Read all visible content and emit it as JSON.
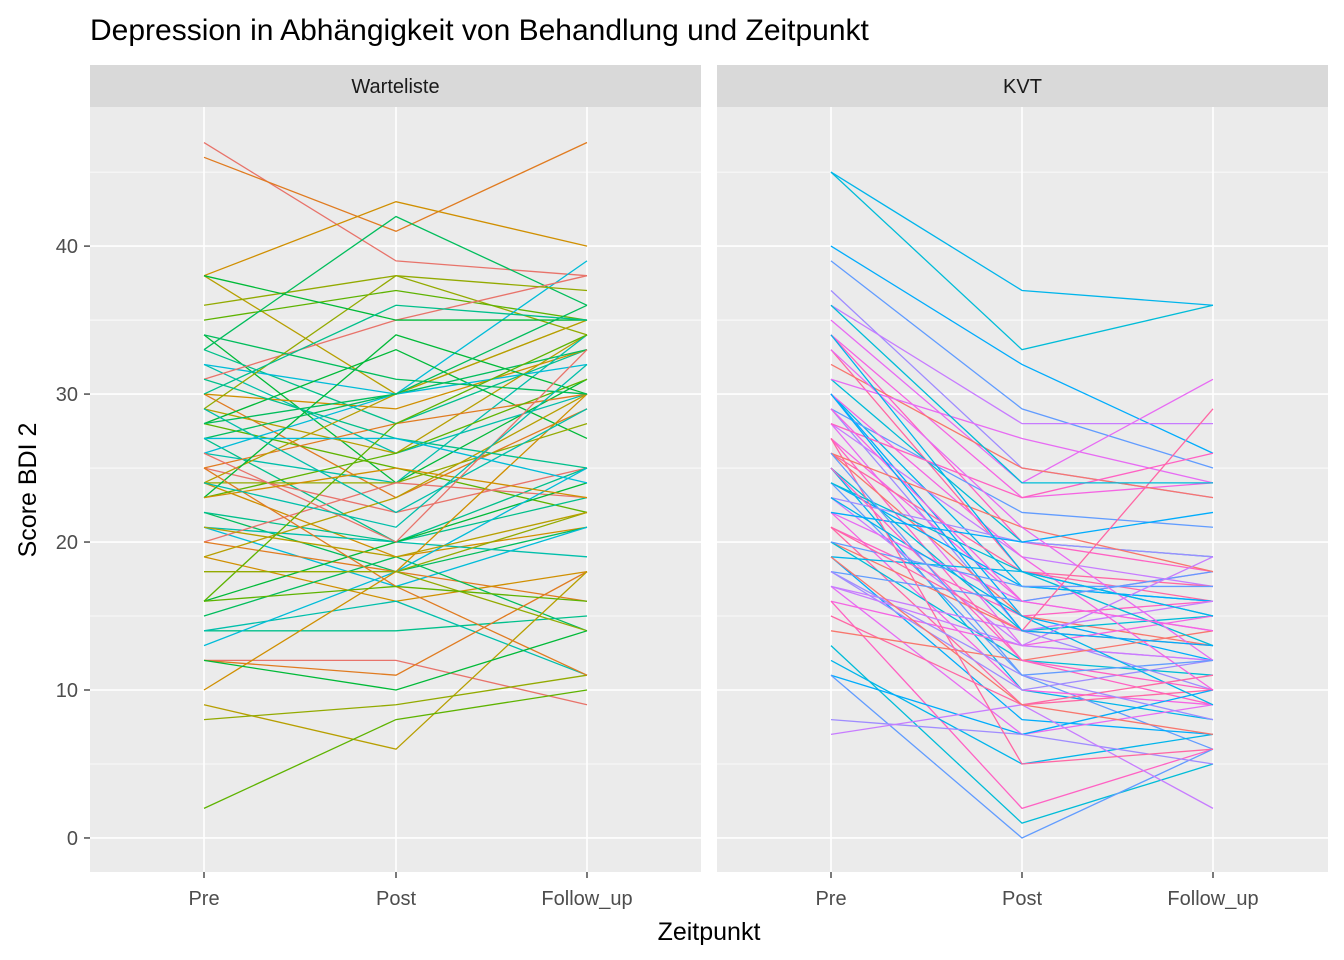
{
  "chart_data": {
    "type": "line",
    "title": "Depression in Abhängigkeit von Behandlung und Zeitpunkt",
    "xlabel": "Zeitpunkt",
    "ylabel": "Score BDI 2",
    "x_categories": [
      "Pre",
      "Post",
      "Follow_up"
    ],
    "y_ticks": [
      "0",
      "10",
      "20",
      "30",
      "40"
    ],
    "ylim": [
      -2.3,
      49.4
    ],
    "grid": true,
    "legend": "none",
    "panels": [
      {
        "name": "Warteliste",
        "palette": [
          "#E8736A",
          "#E07B20",
          "#D08F00",
          "#B79F00",
          "#93AA00",
          "#5EB300",
          "#00BA38",
          "#00BD5C",
          "#00C08B",
          "#00BFAB",
          "#00BCD8"
        ],
        "series": [
          [
            47,
            39,
            38
          ],
          [
            46,
            41,
            47
          ],
          [
            38,
            43,
            40
          ],
          [
            38,
            30,
            35
          ],
          [
            36,
            38,
            34
          ],
          [
            35,
            37,
            35
          ],
          [
            34,
            24,
            31
          ],
          [
            33,
            42,
            36
          ],
          [
            33,
            28,
            33
          ],
          [
            32,
            26,
            30
          ],
          [
            32,
            30,
            39
          ],
          [
            31,
            35,
            38
          ],
          [
            30,
            23,
            29
          ],
          [
            30,
            29,
            33
          ],
          [
            29,
            26,
            34
          ],
          [
            29,
            38,
            37
          ],
          [
            28,
            25,
            22
          ],
          [
            28,
            33,
            27
          ],
          [
            27,
            30,
            33
          ],
          [
            27,
            20,
            23
          ],
          [
            26,
            24,
            34
          ],
          [
            26,
            30,
            32
          ],
          [
            25,
            22,
            25
          ],
          [
            25,
            28,
            30
          ],
          [
            24,
            19,
            21
          ],
          [
            24,
            30,
            35
          ],
          [
            24,
            24,
            28
          ],
          [
            23,
            26,
            31
          ],
          [
            23,
            34,
            30
          ],
          [
            22,
            18,
            21
          ],
          [
            22,
            20,
            25
          ],
          [
            21,
            20,
            19
          ],
          [
            21,
            17,
            21
          ],
          [
            20,
            24,
            23
          ],
          [
            20,
            18,
            16
          ],
          [
            19,
            16,
            18
          ],
          [
            19,
            23,
            30
          ],
          [
            18,
            18,
            22
          ],
          [
            16,
            28,
            34
          ],
          [
            16,
            20,
            24
          ],
          [
            15,
            19,
            14
          ],
          [
            14,
            14,
            15
          ],
          [
            14,
            16,
            11
          ],
          [
            13,
            18,
            25
          ],
          [
            12,
            12,
            9
          ],
          [
            12,
            11,
            18
          ],
          [
            10,
            18,
            30
          ],
          [
            9,
            6,
            18
          ],
          [
            8,
            9,
            11
          ],
          [
            2,
            8,
            10
          ],
          [
            38,
            35,
            35
          ],
          [
            34,
            31,
            30
          ],
          [
            31,
            27,
            25
          ],
          [
            29,
            22,
            29
          ],
          [
            27,
            27,
            24
          ],
          [
            26,
            20,
            33
          ],
          [
            25,
            17,
            11
          ],
          [
            23,
            25,
            23
          ],
          [
            21,
            19,
            22
          ],
          [
            18,
            18,
            14
          ],
          [
            16,
            17,
            16
          ],
          [
            12,
            10,
            14
          ],
          [
            28,
            30,
            36
          ],
          [
            30,
            36,
            35
          ],
          [
            24,
            21,
            32
          ]
        ]
      },
      {
        "name": "KVT",
        "palette": [
          "#00BCD8",
          "#00B5EB",
          "#00ACFC",
          "#619CFF",
          "#9F8CFF",
          "#C77CFF",
          "#E76BF3",
          "#F564E3",
          "#FF61C3",
          "#FF67A4",
          "#F8766D"
        ],
        "series": [
          [
            45,
            33,
            36
          ],
          [
            45,
            37,
            36
          ],
          [
            40,
            32,
            26
          ],
          [
            39,
            29,
            25
          ],
          [
            37,
            25,
            23
          ],
          [
            36,
            28,
            28
          ],
          [
            35,
            24,
            31
          ],
          [
            34,
            23,
            24
          ],
          [
            34,
            20,
            18
          ],
          [
            33,
            18,
            16
          ],
          [
            32,
            25,
            23
          ],
          [
            31,
            20,
            19
          ],
          [
            30,
            17,
            16
          ],
          [
            30,
            15,
            12
          ],
          [
            29,
            22,
            21
          ],
          [
            29,
            14,
            10
          ],
          [
            28,
            19,
            17
          ],
          [
            28,
            13,
            12
          ],
          [
            27,
            16,
            18
          ],
          [
            27,
            12,
            9
          ],
          [
            26,
            18,
            17
          ],
          [
            26,
            15,
            13
          ],
          [
            25,
            14,
            15
          ],
          [
            25,
            10,
            8
          ],
          [
            24,
            17,
            16
          ],
          [
            24,
            11,
            6
          ],
          [
            23,
            20,
            19
          ],
          [
            23,
            13,
            12
          ],
          [
            22,
            16,
            14
          ],
          [
            22,
            10,
            9
          ],
          [
            21,
            15,
            16
          ],
          [
            21,
            9,
            10
          ],
          [
            20,
            14,
            13
          ],
          [
            20,
            12,
            11
          ],
          [
            19,
            18,
            15
          ],
          [
            19,
            8,
            7
          ],
          [
            18,
            16,
            18
          ],
          [
            18,
            10,
            12
          ],
          [
            17,
            14,
            16
          ],
          [
            17,
            7,
            9
          ],
          [
            16,
            13,
            15
          ],
          [
            16,
            2,
            6
          ],
          [
            15,
            9,
            11
          ],
          [
            14,
            12,
            14
          ],
          [
            13,
            1,
            5
          ],
          [
            12,
            5,
            7
          ],
          [
            11,
            7,
            10
          ],
          [
            11,
            0,
            6
          ],
          [
            8,
            7,
            5
          ],
          [
            7,
            9,
            2
          ],
          [
            31,
            27,
            24
          ],
          [
            30,
            19,
            10
          ],
          [
            28,
            23,
            26
          ],
          [
            27,
            5,
            6
          ],
          [
            26,
            21,
            18
          ],
          [
            24,
            18,
            13
          ],
          [
            23,
            15,
            9
          ],
          [
            22,
            20,
            22
          ],
          [
            20,
            17,
            17
          ],
          [
            18,
            11,
            8
          ],
          [
            17,
            13,
            19
          ],
          [
            33,
            21,
            12
          ],
          [
            29,
            16,
            14
          ],
          [
            25,
            12,
            10
          ],
          [
            21,
            14,
            29
          ],
          [
            19,
            9,
            7
          ],
          [
            36,
            24,
            24
          ],
          [
            34,
            18,
            15
          ],
          [
            30,
            14,
            13
          ],
          [
            26,
            11,
            12
          ]
        ]
      }
    ]
  }
}
